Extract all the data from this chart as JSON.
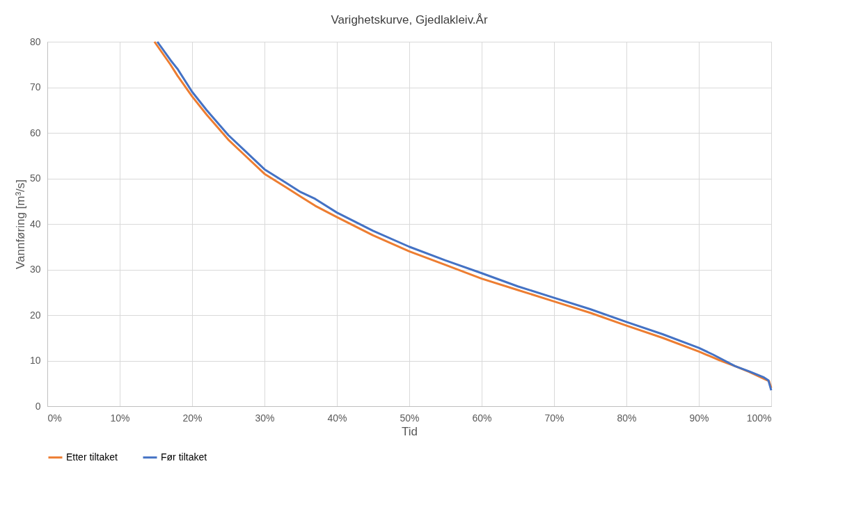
{
  "chart_data": {
    "type": "line",
    "title": "Varighetskurve, Gjedlakleiv.År",
    "xlabel": "Tid",
    "ylabel": "Vannføring [m³/s]",
    "xlim": [
      0,
      100
    ],
    "xticks": [
      {
        "value": 0,
        "label": "0%"
      },
      {
        "value": 10,
        "label": "10%"
      },
      {
        "value": 20,
        "label": "20%"
      },
      {
        "value": 30,
        "label": "30%"
      },
      {
        "value": 40,
        "label": "40%"
      },
      {
        "value": 50,
        "label": "50%"
      },
      {
        "value": 60,
        "label": "60%"
      },
      {
        "value": 70,
        "label": "70%"
      },
      {
        "value": 80,
        "label": "80%"
      },
      {
        "value": 90,
        "label": "90%"
      },
      {
        "value": 100,
        "label": "100%"
      }
    ],
    "ylim": [
      0,
      80
    ],
    "yticks": [
      0,
      10,
      20,
      30,
      40,
      50,
      60,
      70,
      80
    ],
    "grid": true,
    "legend": "bottom",
    "marker": "none",
    "line_style": "solid",
    "series": [
      {
        "name": "Etter tiltaket",
        "color": "#ed7d31",
        "x": [
          14.8,
          17,
          18,
          20,
          22,
          25,
          27,
          30,
          33,
          35,
          37,
          40,
          45,
          50,
          55,
          60,
          65,
          70,
          75,
          80,
          85,
          90,
          93,
          95,
          97,
          99,
          99.7,
          100
        ],
        "values": [
          80,
          75,
          72.5,
          68,
          64,
          58.5,
          55.5,
          51,
          48,
          46,
          44,
          41.5,
          37.5,
          34,
          31,
          28,
          25.5,
          23,
          20.5,
          17.7,
          15,
          12,
          10,
          8.8,
          7.5,
          6,
          5.5,
          4
        ]
      },
      {
        "name": "Før tiltaket",
        "color": "#4472c4",
        "x": [
          15.2,
          17,
          18,
          20,
          22,
          25,
          27,
          30,
          33,
          35,
          37,
          40,
          45,
          50,
          55,
          60,
          65,
          70,
          75,
          80,
          85,
          90,
          92,
          95,
          97,
          99,
          99.6,
          100
        ],
        "values": [
          80,
          76,
          74,
          69,
          65,
          59.5,
          56.5,
          52,
          49,
          47,
          45.5,
          42.5,
          38.5,
          35,
          32,
          29.2,
          26.3,
          23.8,
          21.3,
          18.5,
          15.8,
          12.8,
          11.3,
          8.8,
          7.6,
          6.3,
          5.7,
          3.5
        ]
      }
    ]
  }
}
